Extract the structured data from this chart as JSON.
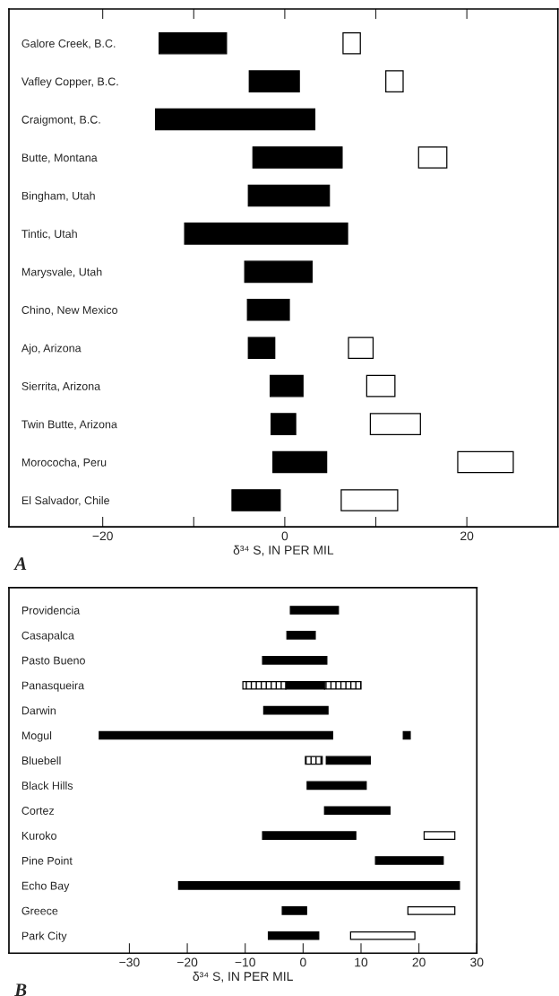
{
  "chart_data": [
    {
      "type": "bar",
      "orientation": "horizontal",
      "xlabel": "δ³⁴ S, IN PER MIL",
      "annotations": [
        "A"
      ],
      "categories": [
        "Galore Creek, B.C.",
        "Vafley Copper, B.C.",
        "Craigmont, B.C.",
        "Butte, Montana",
        "Bingham, Utah",
        "Tintic, Utah",
        "Marysvale, Utah",
        "Chino, New Mexico",
        "Ajo, Arizona",
        "Sierrita, Arizona",
        "Twin Butte, Arizona",
        "Morococha, Peru",
        "El Salvador, Chile"
      ],
      "series": [
        {
          "color": "#000000",
          "base": [
            -13.8,
            -3.9,
            -14.2,
            -3.5,
            -4.0,
            -11.0,
            -4.4,
            -4.1,
            -4.0,
            -1.6,
            -1.5,
            -1.3,
            -5.8
          ],
          "values": [
            7.4,
            5.5,
            17.5,
            9.8,
            8.9,
            17.9,
            7.4,
            4.6,
            2.9,
            3.6,
            2.7,
            5.9,
            5.3
          ]
        },
        {
          "color": "#ffffff",
          "base": [
            6.4,
            11.1,
            null,
            14.7,
            null,
            null,
            null,
            null,
            7.0,
            9.0,
            9.4,
            19.0,
            6.2
          ],
          "values": [
            1.9,
            1.9,
            null,
            3.1,
            null,
            null,
            null,
            null,
            2.7,
            3.1,
            5.5,
            6.1,
            6.2
          ]
        }
      ],
      "xlim": [
        -30.3,
        30
      ],
      "xticks": [
        {
          "value": -20,
          "label": "−20"
        },
        {
          "value": -10,
          "label": null
        },
        0,
        {
          "value": 10,
          "label": null
        },
        20
      ],
      "grid": false,
      "legend": false
    },
    {
      "type": "bar",
      "orientation": "horizontal",
      "xlabel": "δ³⁴ S, IN PER MIL",
      "annotations": [
        "B"
      ],
      "categories": [
        "Providencia",
        "Casapalca",
        "Pasto Bueno",
        "Panasqueira",
        "Darwin",
        "Mogul",
        "Bluebell",
        "Black Hills",
        "Cortez",
        "Kuroko",
        "Pine Point",
        "Echo Bay",
        "Greece",
        "Park City"
      ],
      "series": [
        {
          "color": "#000000",
          "base": [
            -2.2,
            -2.8,
            -7.0,
            -3.0,
            -6.8,
            -35.2,
            4.0,
            0.7,
            3.7,
            -7.0,
            12.5,
            -21.5,
            -3.6,
            -6.0
          ],
          "values": [
            8.3,
            4.9,
            11.1,
            6.7,
            11.1,
            40.3,
            7.6,
            10.2,
            11.3,
            16.1,
            11.7,
            48.5,
            4.2,
            8.7
          ]
        },
        {
          "color": "#000000",
          "line_style": "dashed",
          "base": [
            null,
            null,
            null,
            -10.4,
            null,
            null,
            0.4,
            null,
            null,
            null,
            null,
            null,
            null,
            null
          ],
          "values": [
            null,
            null,
            null,
            7.4,
            null,
            null,
            2.9,
            null,
            null,
            null,
            null,
            null,
            null,
            null
          ]
        },
        {
          "color": "#000000",
          "line_style": "dashed",
          "base": [
            null,
            null,
            null,
            3.7,
            null,
            null,
            null,
            null,
            null,
            null,
            null,
            null,
            null,
            null
          ],
          "values": [
            null,
            null,
            null,
            6.3,
            null,
            null,
            null,
            null,
            null,
            null,
            null,
            null,
            null,
            null
          ]
        },
        {
          "color": "#000000",
          "base": [
            null,
            null,
            null,
            null,
            null,
            17.3,
            null,
            null,
            null,
            null,
            null,
            null,
            null,
            null
          ],
          "values": [
            null,
            null,
            null,
            null,
            null,
            1.2,
            null,
            null,
            null,
            null,
            null,
            null,
            null,
            null
          ]
        },
        {
          "color": "#ffffff",
          "base": [
            null,
            null,
            null,
            null,
            null,
            null,
            null,
            null,
            null,
            20.9,
            null,
            null,
            18.1,
            8.2
          ],
          "values": [
            null,
            null,
            null,
            null,
            null,
            null,
            null,
            null,
            null,
            5.3,
            null,
            null,
            8.1,
            11.1
          ]
        }
      ],
      "xlim": [
        -50.8,
        30
      ],
      "xticks": [
        {
          "value": -30,
          "label": "−30"
        },
        {
          "value": -20,
          "label": "−20"
        },
        {
          "value": -10,
          "label": "−10"
        },
        0,
        10,
        20,
        30
      ],
      "grid": false,
      "legend": false
    }
  ]
}
